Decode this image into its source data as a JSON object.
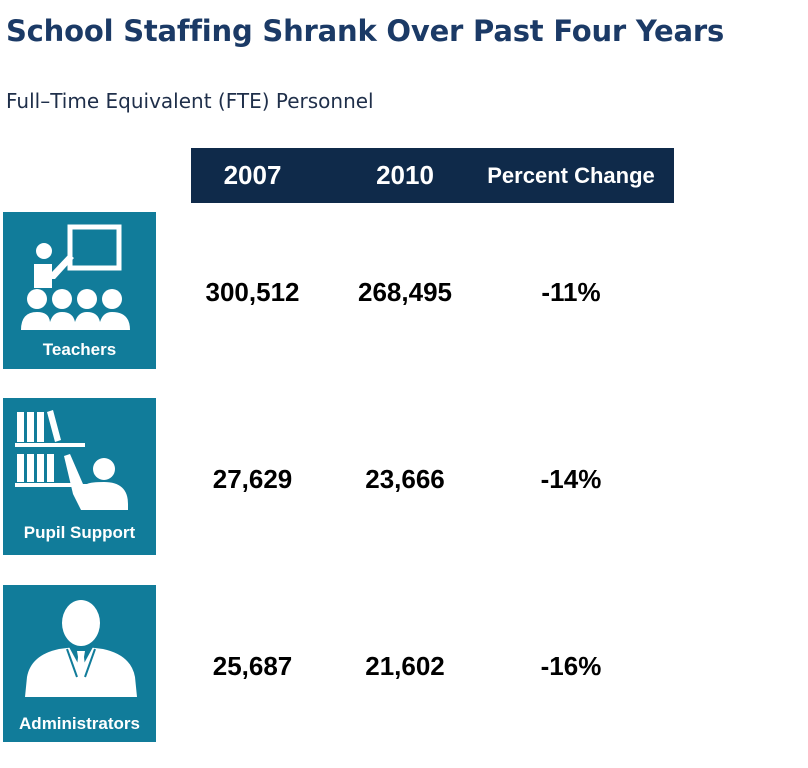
{
  "title": "School Staffing Shrank Over Past Four Years",
  "subtitle": "Full–Time Equivalent (FTE) Personnel",
  "colors": {
    "title": "#1b3a66",
    "header_bg": "#0f2a4a",
    "tile_bg": "#117c9a"
  },
  "chart_data": {
    "type": "table",
    "columns": [
      "2007",
      "2010",
      "Percent Change"
    ],
    "rows": [
      {
        "label": "Teachers",
        "icon": "teacher-classroom-icon",
        "v2007": "300,512",
        "v2010": "268,495",
        "change": "-11%"
      },
      {
        "label": "Pupil Support",
        "icon": "librarian-icon",
        "v2007": "27,629",
        "v2010": "23,666",
        "change": "-14%"
      },
      {
        "label": "Administrators",
        "icon": "administrator-icon",
        "v2007": "25,687",
        "v2010": "21,602",
        "change": "-16%"
      }
    ]
  }
}
